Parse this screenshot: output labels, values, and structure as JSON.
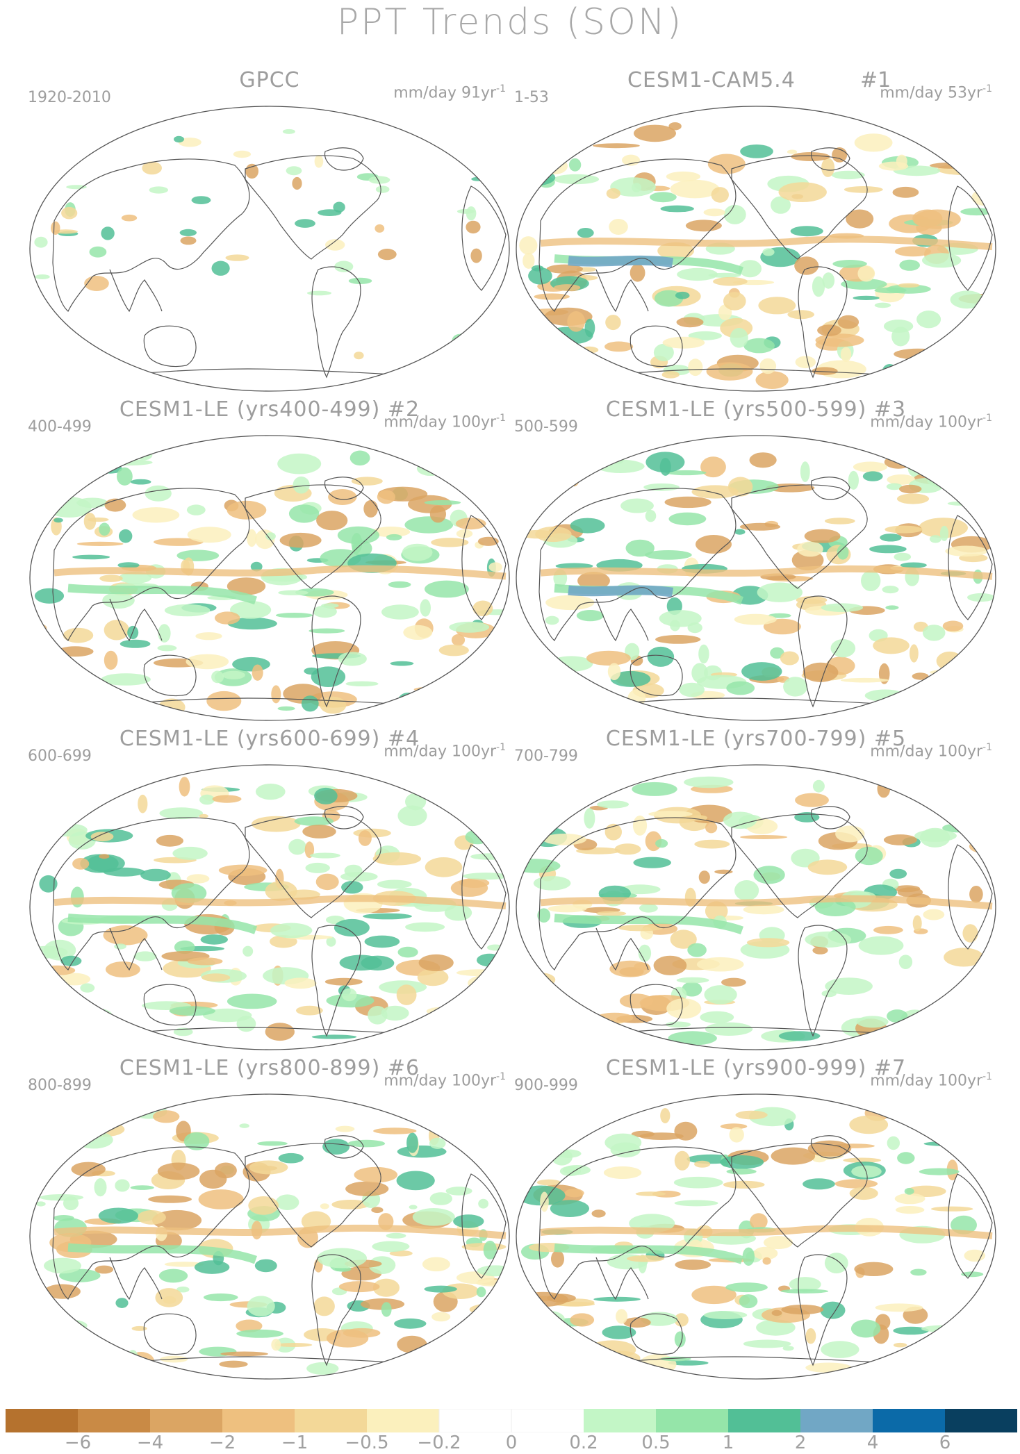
{
  "title": "PPT Trends (SON)",
  "panels": [
    {
      "title": "GPCC",
      "number": "",
      "range": "1920-2010",
      "units": "mm/day 91yr",
      "units_exp": "-1"
    },
    {
      "title": "CESM1-CAM5.4",
      "number": "#1",
      "range": "1-53",
      "units": "mm/day 53yr",
      "units_exp": "-1"
    },
    {
      "title": "CESM1-LE (yrs400-499) #2",
      "number": "",
      "range": "400-499",
      "units": "mm/day 100yr",
      "units_exp": "-1"
    },
    {
      "title": "CESM1-LE (yrs500-599) #3",
      "number": "",
      "range": "500-599",
      "units": "mm/day 100yr",
      "units_exp": "-1"
    },
    {
      "title": "CESM1-LE (yrs600-699) #4",
      "number": "",
      "range": "600-699",
      "units": "mm/day 100yr",
      "units_exp": "-1"
    },
    {
      "title": "CESM1-LE (yrs700-799) #5",
      "number": "",
      "range": "700-799",
      "units": "mm/day 100yr",
      "units_exp": "-1"
    },
    {
      "title": "CESM1-LE (yrs800-899) #6",
      "number": "",
      "range": "800-899",
      "units": "mm/day 100yr",
      "units_exp": "-1"
    },
    {
      "title": "CESM1-LE (yrs900-999) #7",
      "number": "",
      "range": "900-999",
      "units": "mm/day 100yr",
      "units_exp": "-1"
    }
  ],
  "colorbar": {
    "colors": [
      "#b5722e",
      "#c98a45",
      "#dba563",
      "#eec07f",
      "#f3d898",
      "#fbf0bd",
      "#ffffff",
      "#ffffff",
      "#c3f6c6",
      "#95e5a9",
      "#52bf96",
      "#71a7c5",
      "#0b6aa8",
      "#093f5f"
    ],
    "labels": [
      "−6",
      "−4",
      "−2",
      "−1",
      "−0.5",
      "−0.2",
      "0",
      "0.2",
      "0.5",
      "1",
      "2",
      "4",
      "6"
    ]
  }
}
